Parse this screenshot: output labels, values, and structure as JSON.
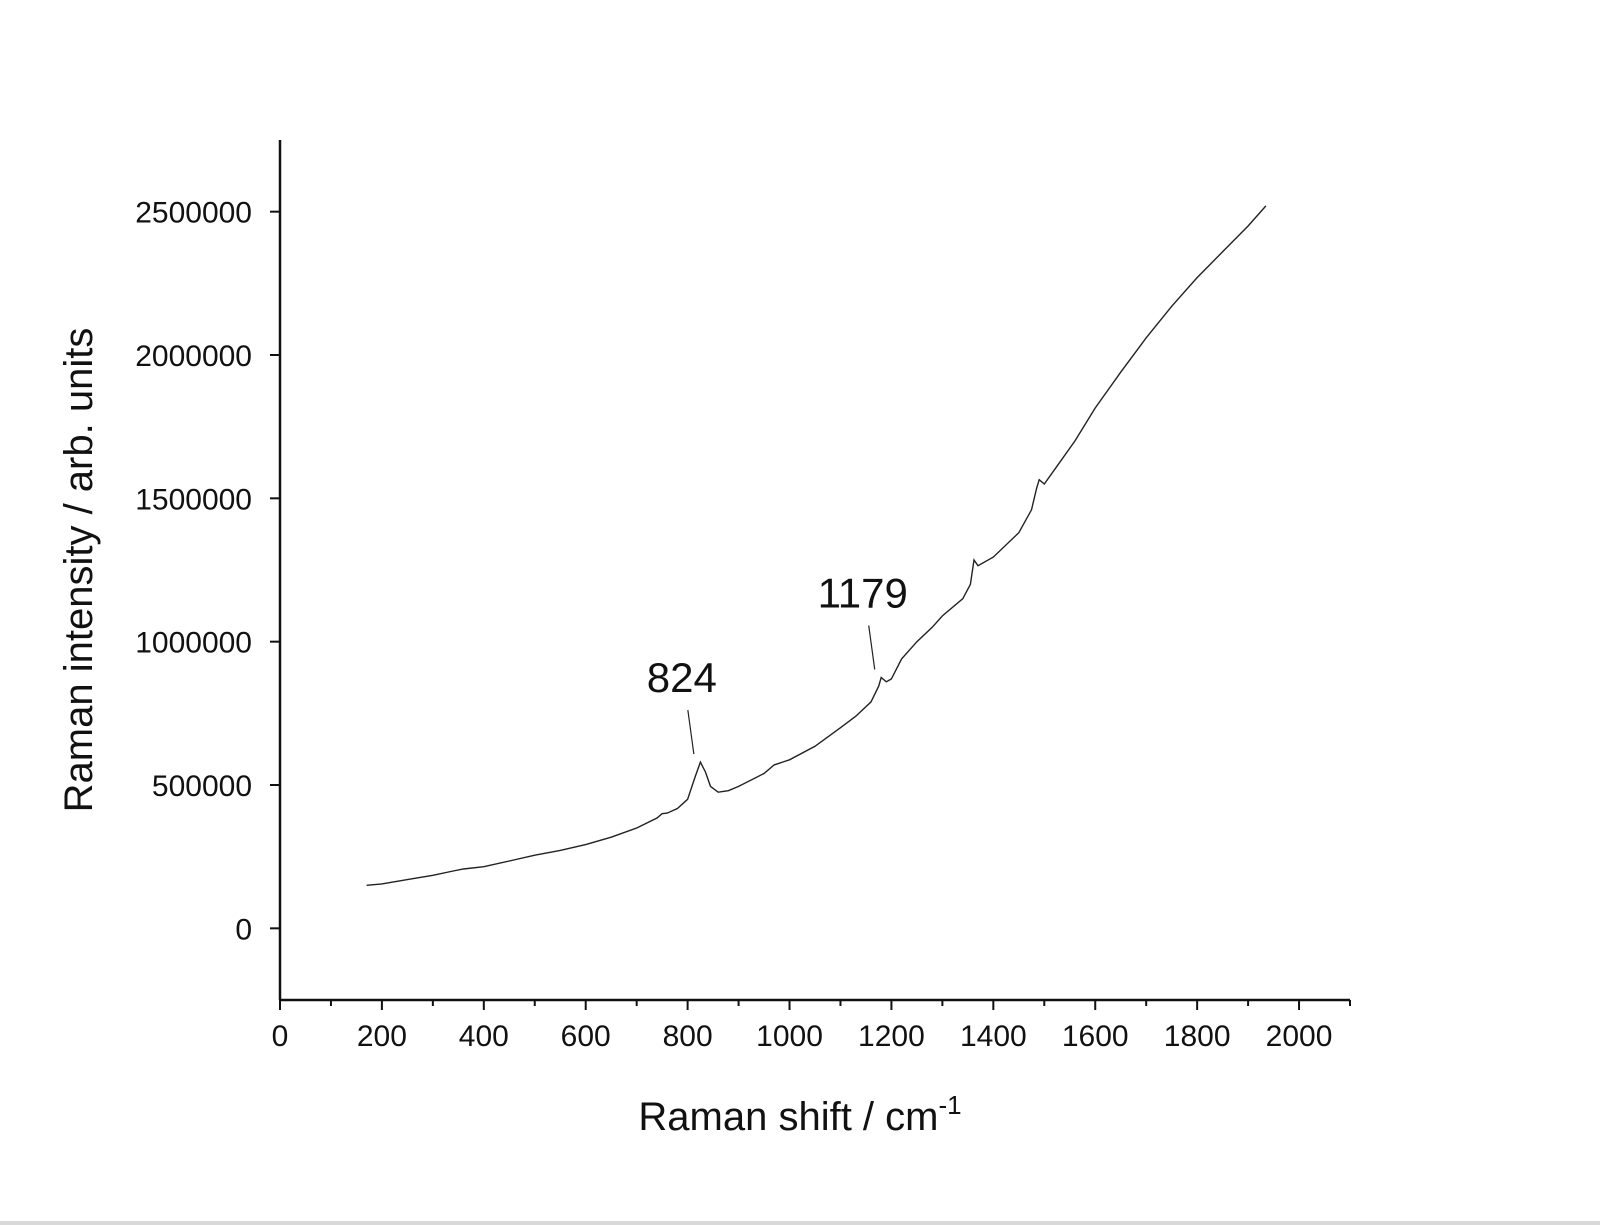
{
  "chart_data": {
    "type": "line",
    "xlabel": "Raman shift / cm",
    "xlabel_superscript": "-1",
    "ylabel": "Raman intensity / arb. units",
    "xlim": [
      0,
      2100
    ],
    "ylim": [
      -250000,
      2750000
    ],
    "x_ticks": [
      0,
      200,
      400,
      600,
      800,
      1000,
      1200,
      1400,
      1600,
      1800,
      2000
    ],
    "x_tick_labels": [
      "0",
      "200",
      "400",
      "600",
      "800",
      "1000",
      "1200",
      "1400",
      "1600",
      "1800",
      "2000"
    ],
    "y_ticks": [
      0,
      500000,
      1000000,
      1500000,
      2000000,
      2500000
    ],
    "y_tick_labels": [
      "0",
      "500000",
      "1000000",
      "1500000",
      "2000000",
      "2500000"
    ],
    "grid": false,
    "line_color": "#222222",
    "series": [
      {
        "x": [
          170,
          200,
          250,
          300,
          340,
          360,
          400,
          450,
          500,
          550,
          600,
          650,
          700,
          740,
          750,
          760,
          780,
          800,
          815,
          825,
          835,
          845,
          860,
          880,
          900,
          950,
          970,
          990,
          1000,
          1050,
          1100,
          1130,
          1160,
          1175,
          1180,
          1190,
          1200,
          1220,
          1250,
          1280,
          1300,
          1340,
          1355,
          1362,
          1370,
          1400,
          1450,
          1475,
          1485,
          1490,
          1500,
          1520,
          1560,
          1600,
          1650,
          1700,
          1750,
          1800,
          1850,
          1900,
          1935
        ],
        "y": [
          150000,
          155000,
          170000,
          185000,
          200000,
          207000,
          215000,
          235000,
          255000,
          272000,
          292000,
          318000,
          350000,
          385000,
          400000,
          402000,
          418000,
          450000,
          530000,
          580000,
          545000,
          495000,
          475000,
          480000,
          495000,
          540000,
          570000,
          582000,
          588000,
          635000,
          700000,
          740000,
          790000,
          845000,
          875000,
          860000,
          870000,
          940000,
          1000000,
          1050000,
          1090000,
          1150000,
          1200000,
          1285000,
          1265000,
          1295000,
          1380000,
          1460000,
          1535000,
          1565000,
          1550000,
          1600000,
          1700000,
          1815000,
          1940000,
          2060000,
          2170000,
          2270000,
          2360000,
          2450000,
          2520000
        ]
      }
    ],
    "annotations": [
      {
        "text": "824",
        "x": 824,
        "y": 580000
      },
      {
        "text": "1179",
        "x": 1179,
        "y": 875000
      }
    ]
  }
}
